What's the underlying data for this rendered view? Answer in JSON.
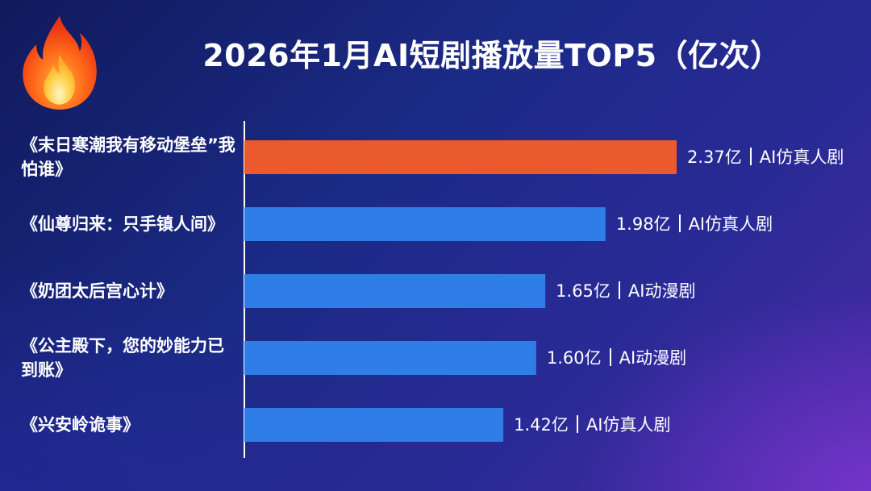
{
  "chart_data": {
    "type": "bar",
    "orientation": "horizontal",
    "title": "2026年1月AI短剧播放量TOP5（亿次）",
    "categories": [
      "《末日寒潮我有移动堡垒”我怕谁》",
      "《仙尊归来：只手镇人间》",
      "《奶团太后宫心计》",
      "《公主殿下，您的妙能力已到账》",
      "《兴安岭诡事》"
    ],
    "values": [
      2.37,
      1.98,
      1.65,
      1.6,
      1.42
    ],
    "value_labels": [
      "2.37亿",
      "1.98亿",
      "1.65亿",
      "1.60亿",
      "1.42亿"
    ],
    "genres": [
      "AI仿真人剧",
      "AI仿真人剧",
      "AI动漫剧",
      "AI动漫剧",
      "AI仿真人剧"
    ],
    "xlim": [
      0,
      2.37
    ],
    "grid": false,
    "legend": "none",
    "highlight_color": "#ea5a2c",
    "bar_color": "#2f7de6"
  },
  "decor": {
    "title_icon": "fire-icon"
  }
}
